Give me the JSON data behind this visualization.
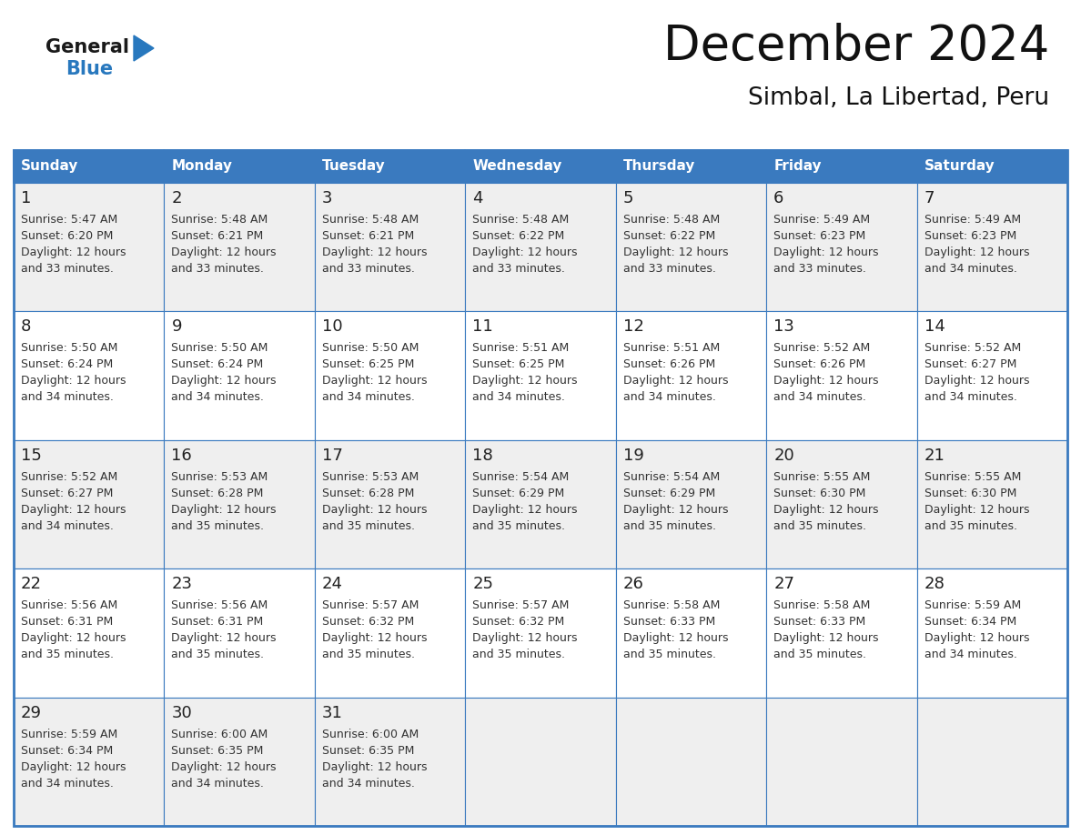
{
  "title": "December 2024",
  "subtitle": "Simbal, La Libertad, Peru",
  "days_of_week": [
    "Sunday",
    "Monday",
    "Tuesday",
    "Wednesday",
    "Thursday",
    "Friday",
    "Saturday"
  ],
  "header_bg": "#3a7abf",
  "header_text": "#ffffff",
  "row_bg_odd": "#efefef",
  "row_bg_even": "#ffffff",
  "border_color": "#3a7abf",
  "day_num_color": "#222222",
  "text_color": "#333333",
  "title_color": "#111111",
  "logo_general_color": "#1a1a1a",
  "logo_blue_color": "#2878be",
  "fig_width": 11.88,
  "fig_height": 9.18,
  "dpi": 100,
  "calendar_data": [
    [
      {
        "day": 1,
        "sunrise": "5:47 AM",
        "sunset": "6:20 PM",
        "daylight": "12 hours and 33 minutes."
      },
      {
        "day": 2,
        "sunrise": "5:48 AM",
        "sunset": "6:21 PM",
        "daylight": "12 hours and 33 minutes."
      },
      {
        "day": 3,
        "sunrise": "5:48 AM",
        "sunset": "6:21 PM",
        "daylight": "12 hours and 33 minutes."
      },
      {
        "day": 4,
        "sunrise": "5:48 AM",
        "sunset": "6:22 PM",
        "daylight": "12 hours and 33 minutes."
      },
      {
        "day": 5,
        "sunrise": "5:48 AM",
        "sunset": "6:22 PM",
        "daylight": "12 hours and 33 minutes."
      },
      {
        "day": 6,
        "sunrise": "5:49 AM",
        "sunset": "6:23 PM",
        "daylight": "12 hours and 33 minutes."
      },
      {
        "day": 7,
        "sunrise": "5:49 AM",
        "sunset": "6:23 PM",
        "daylight": "12 hours and 34 minutes."
      }
    ],
    [
      {
        "day": 8,
        "sunrise": "5:50 AM",
        "sunset": "6:24 PM",
        "daylight": "12 hours and 34 minutes."
      },
      {
        "day": 9,
        "sunrise": "5:50 AM",
        "sunset": "6:24 PM",
        "daylight": "12 hours and 34 minutes."
      },
      {
        "day": 10,
        "sunrise": "5:50 AM",
        "sunset": "6:25 PM",
        "daylight": "12 hours and 34 minutes."
      },
      {
        "day": 11,
        "sunrise": "5:51 AM",
        "sunset": "6:25 PM",
        "daylight": "12 hours and 34 minutes."
      },
      {
        "day": 12,
        "sunrise": "5:51 AM",
        "sunset": "6:26 PM",
        "daylight": "12 hours and 34 minutes."
      },
      {
        "day": 13,
        "sunrise": "5:52 AM",
        "sunset": "6:26 PM",
        "daylight": "12 hours and 34 minutes."
      },
      {
        "day": 14,
        "sunrise": "5:52 AM",
        "sunset": "6:27 PM",
        "daylight": "12 hours and 34 minutes."
      }
    ],
    [
      {
        "day": 15,
        "sunrise": "5:52 AM",
        "sunset": "6:27 PM",
        "daylight": "12 hours and 34 minutes."
      },
      {
        "day": 16,
        "sunrise": "5:53 AM",
        "sunset": "6:28 PM",
        "daylight": "12 hours and 35 minutes."
      },
      {
        "day": 17,
        "sunrise": "5:53 AM",
        "sunset": "6:28 PM",
        "daylight": "12 hours and 35 minutes."
      },
      {
        "day": 18,
        "sunrise": "5:54 AM",
        "sunset": "6:29 PM",
        "daylight": "12 hours and 35 minutes."
      },
      {
        "day": 19,
        "sunrise": "5:54 AM",
        "sunset": "6:29 PM",
        "daylight": "12 hours and 35 minutes."
      },
      {
        "day": 20,
        "sunrise": "5:55 AM",
        "sunset": "6:30 PM",
        "daylight": "12 hours and 35 minutes."
      },
      {
        "day": 21,
        "sunrise": "5:55 AM",
        "sunset": "6:30 PM",
        "daylight": "12 hours and 35 minutes."
      }
    ],
    [
      {
        "day": 22,
        "sunrise": "5:56 AM",
        "sunset": "6:31 PM",
        "daylight": "12 hours and 35 minutes."
      },
      {
        "day": 23,
        "sunrise": "5:56 AM",
        "sunset": "6:31 PM",
        "daylight": "12 hours and 35 minutes."
      },
      {
        "day": 24,
        "sunrise": "5:57 AM",
        "sunset": "6:32 PM",
        "daylight": "12 hours and 35 minutes."
      },
      {
        "day": 25,
        "sunrise": "5:57 AM",
        "sunset": "6:32 PM",
        "daylight": "12 hours and 35 minutes."
      },
      {
        "day": 26,
        "sunrise": "5:58 AM",
        "sunset": "6:33 PM",
        "daylight": "12 hours and 35 minutes."
      },
      {
        "day": 27,
        "sunrise": "5:58 AM",
        "sunset": "6:33 PM",
        "daylight": "12 hours and 35 minutes."
      },
      {
        "day": 28,
        "sunrise": "5:59 AM",
        "sunset": "6:34 PM",
        "daylight": "12 hours and 34 minutes."
      }
    ],
    [
      {
        "day": 29,
        "sunrise": "5:59 AM",
        "sunset": "6:34 PM",
        "daylight": "12 hours and 34 minutes."
      },
      {
        "day": 30,
        "sunrise": "6:00 AM",
        "sunset": "6:35 PM",
        "daylight": "12 hours and 34 minutes."
      },
      {
        "day": 31,
        "sunrise": "6:00 AM",
        "sunset": "6:35 PM",
        "daylight": "12 hours and 34 minutes."
      },
      null,
      null,
      null,
      null
    ]
  ]
}
